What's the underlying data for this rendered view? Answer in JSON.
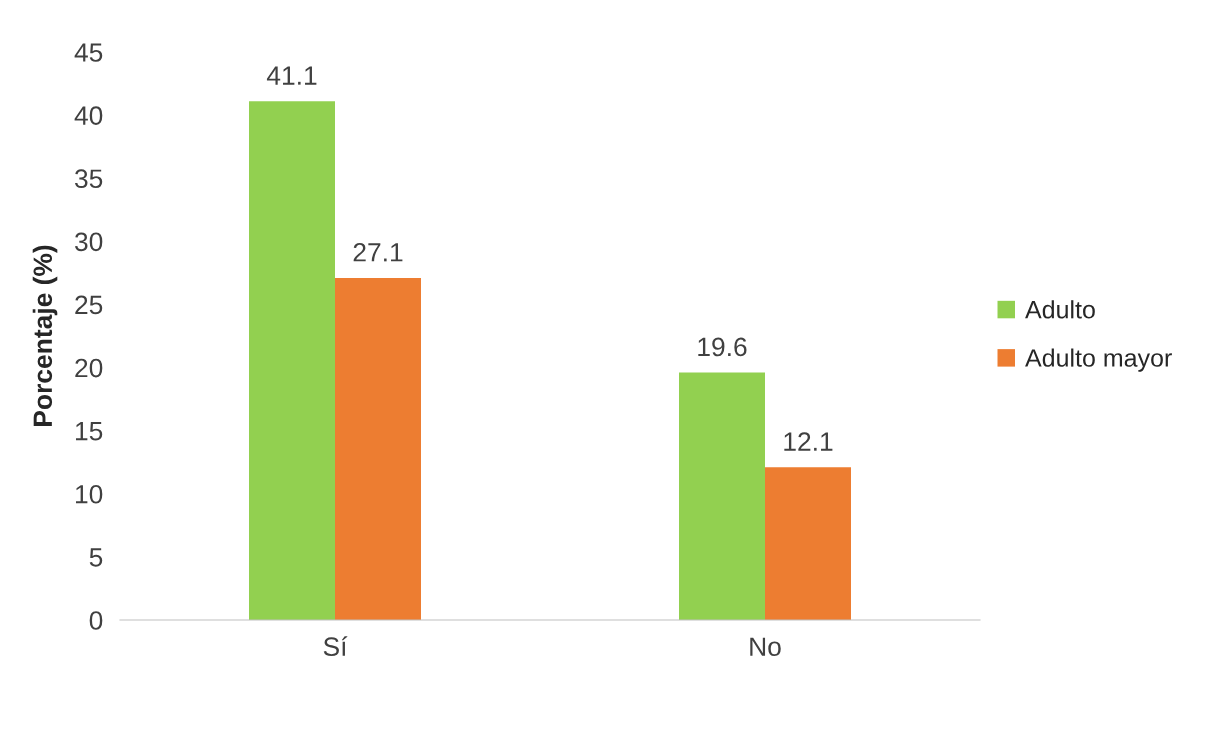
{
  "chart_data": {
    "type": "bar",
    "ylabel": "Porcentaje (%)",
    "categories": [
      "Sí",
      "No"
    ],
    "series": [
      {
        "name": "Adulto",
        "color": "#92d050",
        "values": [
          41.1,
          19.6
        ]
      },
      {
        "name": "Adulto mayor",
        "color": "#ed7d31",
        "values": [
          27.1,
          12.1
        ]
      }
    ],
    "ylim": [
      0,
      45
    ],
    "yticks": [
      0,
      5,
      10,
      15,
      20,
      25,
      30,
      35,
      40,
      45
    ],
    "data_labels": true,
    "legend": "right",
    "grid": false
  }
}
